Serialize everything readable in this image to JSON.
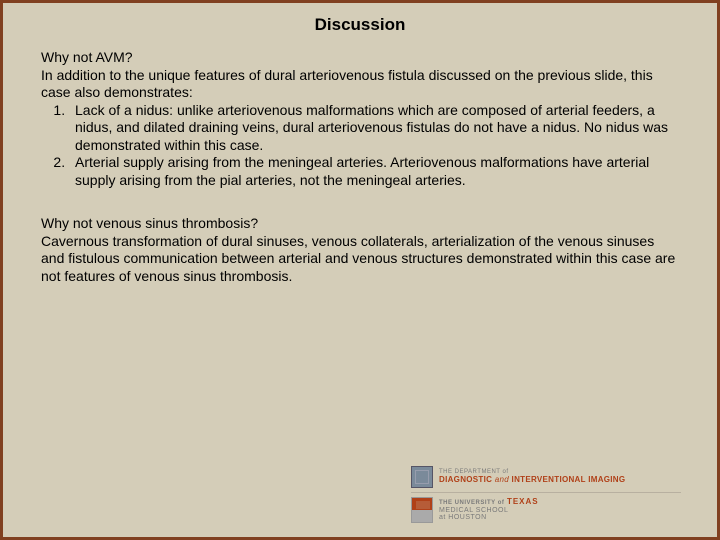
{
  "title": "Discussion",
  "section1": {
    "question": "Why not AVM?",
    "intro": "In addition to the unique features of dural arteriovenous fistula discussed on the previous slide, this case also demonstrates:",
    "item1": "Lack of a nidus: unlike arteriovenous malformations which are composed of arterial feeders, a nidus, and dilated draining veins, dural arteriovenous fistulas do not have a nidus.  No nidus was demonstrated within this case.",
    "item2": "Arterial supply arising from the meningeal arteries.  Arteriovenous malformations have arterial supply arising from the pial arteries, not the meningeal arteries."
  },
  "section2": {
    "question": "Why not venous sinus thrombosis?",
    "body": "Cavernous transformation of dural sinuses, venous collaterals, arterialization of the venous sinuses and fistulous communication between arterial and venous structures demonstrated within this case are not features of venous sinus thrombosis."
  },
  "footer": {
    "dept_prefix": "THE DEPARTMENT of",
    "dept_main_a": "DIAGNOSTIC",
    "dept_amp": "and",
    "dept_main_b": "INTERVENTIONAL IMAGING",
    "ut_prefix": "THE UNIVERSITY of",
    "ut_main": "TEXAS",
    "ut_sub1": "MEDICAL SCHOOL",
    "ut_sub2": "at HOUSTON"
  },
  "colors": {
    "border": "#804020",
    "background": "#d4cdb8",
    "accent": "#b04018"
  }
}
